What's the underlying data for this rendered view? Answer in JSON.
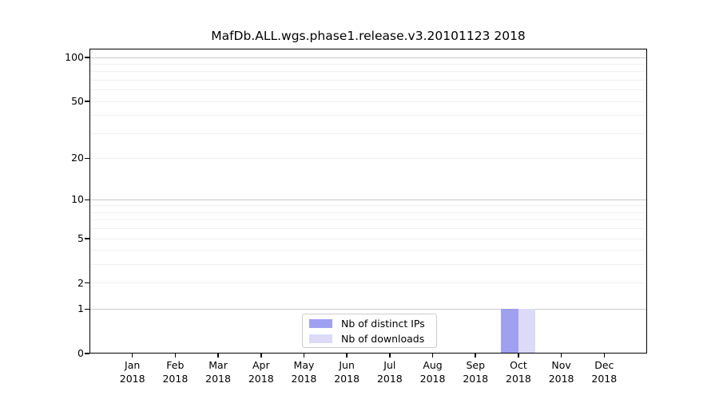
{
  "chart_data": {
    "type": "bar",
    "title": "MafDb.ALL.wgs.phase1.release.v3.20101123 2018",
    "x_tick_months": [
      "Jan",
      "Feb",
      "Mar",
      "Apr",
      "May",
      "Jun",
      "Jul",
      "Aug",
      "Sep",
      "Oct",
      "Nov",
      "Dec"
    ],
    "x_tick_year": "2018",
    "series": [
      {
        "name": "Nb of distinct IPs",
        "color": "#a0a0f0",
        "values": [
          0,
          0,
          0,
          0,
          0,
          0,
          0,
          0,
          0,
          1,
          0,
          0
        ]
      },
      {
        "name": "Nb of downloads",
        "color": "#dbdbf8",
        "values": [
          0,
          0,
          0,
          0,
          0,
          0,
          0,
          0,
          0,
          1,
          0,
          0
        ]
      }
    ],
    "yscale": "log1p",
    "ylim": [
      0,
      115
    ],
    "ytick_values": [
      0,
      1,
      2,
      5,
      10,
      20,
      50,
      100
    ],
    "major_grid_values": [
      1,
      10,
      100
    ],
    "minor_grid_values": [
      2,
      3,
      4,
      5,
      6,
      7,
      8,
      9,
      20,
      30,
      40,
      50,
      60,
      70,
      80,
      90
    ],
    "grid": "horizontal",
    "legend_position": "lower center",
    "colors": {
      "spine": "#000000",
      "major_grid": "#c9c9c9",
      "minor_grid": "#f0f0f0",
      "background": "#ffffff"
    }
  }
}
